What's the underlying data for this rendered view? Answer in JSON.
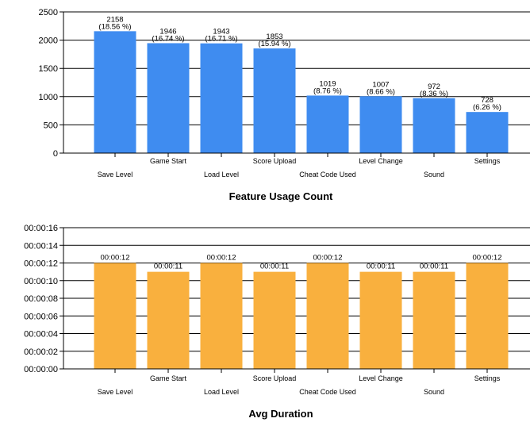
{
  "chart_data": [
    {
      "type": "bar",
      "title": "Feature Usage Count",
      "color": "#3f8cf0",
      "ylim": [
        0,
        2500
      ],
      "yticks": [
        "0",
        "500",
        "1000",
        "1500",
        "2000",
        "2500"
      ],
      "grid": true,
      "categories": [
        "Save Level",
        "Game Start",
        "Load Level",
        "Score Upload",
        "Cheat Code Used",
        "Level Change",
        "Sound",
        "Settings"
      ],
      "values": [
        2158,
        1946,
        1943,
        1853,
        1019,
        1007,
        972,
        728
      ],
      "value_labels": [
        "2158",
        "1946",
        "1943",
        "1853",
        "1019",
        "1007",
        "972",
        "728"
      ],
      "percent_labels": [
        "(18.56 %)",
        "(16.74 %)",
        "(16.71 %)",
        "(15.94 %)",
        "(8.76 %)",
        "(8.66 %)",
        "(8.36 %)",
        "(6.26 %)"
      ]
    },
    {
      "type": "bar",
      "title": "Avg Duration",
      "color": "#f9b03e",
      "ylim": [
        0,
        16
      ],
      "yticks": [
        "00:00:00",
        "00:00:02",
        "00:00:04",
        "00:00:06",
        "00:00:08",
        "00:00:10",
        "00:00:12",
        "00:00:14",
        "00:00:16"
      ],
      "grid": true,
      "categories": [
        "Save Level",
        "Game Start",
        "Load Level",
        "Score Upload",
        "Cheat Code Used",
        "Level Change",
        "Sound",
        "Settings"
      ],
      "values": [
        12,
        11,
        12,
        11,
        12,
        11,
        11,
        12
      ],
      "value_labels": [
        "00:00:12",
        "00:00:11",
        "00:00:12",
        "00:00:11",
        "00:00:12",
        "00:00:11",
        "00:00:11",
        "00:00:12"
      ]
    }
  ]
}
